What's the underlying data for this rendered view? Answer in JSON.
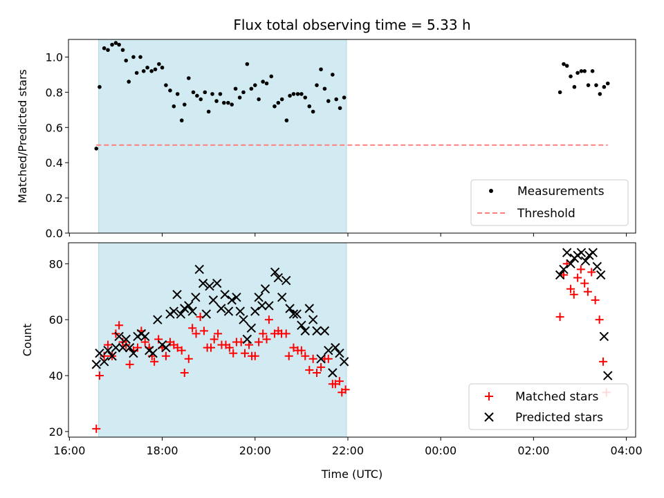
{
  "chart_data": [
    {
      "type": "scatter",
      "title": "Flux total observing time = 5.33 h",
      "xlabel": "",
      "ylabel": "Matched/Predicted stars",
      "ylim": [
        0.0,
        1.1
      ],
      "xlim_hours": [
        15.98,
        28.2
      ],
      "yticks": [
        0.0,
        0.2,
        0.4,
        0.6,
        0.8,
        1.0
      ],
      "ytick_labels": [
        "0.0",
        "0.2",
        "0.4",
        "0.6",
        "0.8",
        "1.0"
      ],
      "shaded_span": [
        16.63,
        21.97
      ],
      "shade_color": "#add8e6",
      "legend_position": "lower right",
      "series": [
        {
          "name": "Measurements",
          "marker": "dot",
          "color": "#000000",
          "points": [
            [
              16.58,
              0.48
            ],
            [
              16.65,
              0.83
            ],
            [
              16.75,
              1.05
            ],
            [
              16.83,
              1.04
            ],
            [
              16.92,
              1.07
            ],
            [
              17.0,
              1.08
            ],
            [
              17.07,
              1.07
            ],
            [
              17.15,
              1.04
            ],
            [
              17.22,
              0.98
            ],
            [
              17.28,
              0.86
            ],
            [
              17.38,
              1.0
            ],
            [
              17.45,
              0.91
            ],
            [
              17.53,
              1.0
            ],
            [
              17.6,
              0.92
            ],
            [
              17.68,
              0.94
            ],
            [
              17.77,
              0.92
            ],
            [
              17.85,
              0.93
            ],
            [
              17.93,
              0.96
            ],
            [
              18.0,
              0.94
            ],
            [
              18.08,
              0.84
            ],
            [
              18.17,
              0.81
            ],
            [
              18.25,
              0.72
            ],
            [
              18.33,
              0.79
            ],
            [
              18.42,
              0.64
            ],
            [
              18.48,
              0.73
            ],
            [
              18.57,
              0.88
            ],
            [
              18.67,
              0.8
            ],
            [
              18.75,
              0.78
            ],
            [
              18.83,
              0.76
            ],
            [
              18.92,
              0.8
            ],
            [
              19.0,
              0.69
            ],
            [
              19.08,
              0.79
            ],
            [
              19.17,
              0.75
            ],
            [
              19.25,
              0.79
            ],
            [
              19.33,
              0.74
            ],
            [
              19.42,
              0.74
            ],
            [
              19.5,
              0.73
            ],
            [
              19.58,
              0.82
            ],
            [
              19.67,
              0.77
            ],
            [
              19.75,
              0.8
            ],
            [
              19.83,
              0.96
            ],
            [
              19.92,
              0.82
            ],
            [
              20.0,
              0.84
            ],
            [
              20.08,
              0.76
            ],
            [
              20.17,
              0.86
            ],
            [
              20.25,
              0.85
            ],
            [
              20.35,
              0.89
            ],
            [
              20.42,
              0.72
            ],
            [
              20.5,
              0.74
            ],
            [
              20.58,
              0.76
            ],
            [
              20.68,
              0.64
            ],
            [
              20.75,
              0.78
            ],
            [
              20.83,
              0.79
            ],
            [
              20.92,
              0.79
            ],
            [
              21.0,
              0.79
            ],
            [
              21.08,
              0.77
            ],
            [
              21.17,
              0.72
            ],
            [
              21.25,
              0.69
            ],
            [
              21.33,
              0.84
            ],
            [
              21.42,
              0.93
            ],
            [
              21.5,
              0.82
            ],
            [
              21.58,
              0.75
            ],
            [
              21.67,
              0.9
            ],
            [
              21.75,
              0.76
            ],
            [
              21.83,
              0.71
            ],
            [
              21.92,
              0.77
            ],
            [
              26.57,
              0.8
            ],
            [
              26.65,
              0.96
            ],
            [
              26.72,
              0.95
            ],
            [
              26.8,
              0.89
            ],
            [
              26.88,
              0.83
            ],
            [
              26.95,
              0.91
            ],
            [
              27.03,
              0.92
            ],
            [
              27.1,
              0.92
            ],
            [
              27.18,
              0.84
            ],
            [
              27.27,
              0.92
            ],
            [
              27.35,
              0.84
            ],
            [
              27.43,
              0.79
            ],
            [
              27.52,
              0.83
            ],
            [
              27.6,
              0.85
            ]
          ]
        },
        {
          "name": "Threshold",
          "style": "dashed",
          "color": "#ff7f7f",
          "x_range": [
            16.58,
            27.6
          ],
          "value": 0.5
        }
      ]
    },
    {
      "type": "scatter",
      "xlabel": "Time (UTC)",
      "ylabel": "Count",
      "ylim": [
        18,
        87.5
      ],
      "xlim_hours": [
        15.98,
        28.2
      ],
      "yticks": [
        20,
        40,
        60,
        80
      ],
      "ytick_labels": [
        "20",
        "40",
        "60",
        "80"
      ],
      "xtick_hours": [
        16,
        18,
        20,
        22,
        24,
        26,
        28
      ],
      "xtick_labels": [
        "16:00",
        "18:00",
        "20:00",
        "22:00",
        "00:00",
        "02:00",
        "04:00"
      ],
      "shaded_span": [
        16.63,
        21.97
      ],
      "shade_color": "#add8e6",
      "legend_position": "lower right",
      "series": [
        {
          "name": "Matched stars",
          "marker": "plus",
          "color": "#ff0000",
          "points": [
            [
              16.58,
              21
            ],
            [
              16.65,
              40
            ],
            [
              16.75,
              47
            ],
            [
              16.83,
              51
            ],
            [
              16.92,
              47
            ],
            [
              17.0,
              55
            ],
            [
              17.07,
              58
            ],
            [
              17.15,
              52
            ],
            [
              17.22,
              51
            ],
            [
              17.3,
              44
            ],
            [
              17.38,
              49
            ],
            [
              17.47,
              50
            ],
            [
              17.55,
              56
            ],
            [
              17.63,
              52
            ],
            [
              17.72,
              50
            ],
            [
              17.78,
              47
            ],
            [
              17.83,
              45
            ],
            [
              17.92,
              53
            ],
            [
              18.0,
              50
            ],
            [
              18.08,
              47
            ],
            [
              18.17,
              52
            ],
            [
              18.25,
              51
            ],
            [
              18.33,
              50
            ],
            [
              18.42,
              49
            ],
            [
              18.48,
              41
            ],
            [
              18.57,
              46
            ],
            [
              18.65,
              57
            ],
            [
              18.73,
              55
            ],
            [
              18.82,
              61
            ],
            [
              18.9,
              56
            ],
            [
              18.97,
              50
            ],
            [
              19.05,
              50
            ],
            [
              19.12,
              53
            ],
            [
              19.2,
              55
            ],
            [
              19.28,
              51
            ],
            [
              19.37,
              51
            ],
            [
              19.45,
              50
            ],
            [
              19.53,
              48
            ],
            [
              19.6,
              52
            ],
            [
              19.7,
              52
            ],
            [
              19.78,
              48
            ],
            [
              19.87,
              51
            ],
            [
              19.93,
              47
            ],
            [
              20.0,
              47
            ],
            [
              20.08,
              52
            ],
            [
              20.17,
              55
            ],
            [
              20.25,
              53
            ],
            [
              20.3,
              60
            ],
            [
              20.42,
              55
            ],
            [
              20.5,
              56
            ],
            [
              20.57,
              55
            ],
            [
              20.67,
              55
            ],
            [
              20.73,
              47
            ],
            [
              20.83,
              50
            ],
            [
              20.92,
              49
            ],
            [
              21.0,
              49
            ],
            [
              21.08,
              47
            ],
            [
              21.17,
              42
            ],
            [
              21.25,
              46
            ],
            [
              21.33,
              41
            ],
            [
              21.42,
              43
            ],
            [
              21.5,
              46
            ],
            [
              21.58,
              46
            ],
            [
              21.67,
              37
            ],
            [
              21.73,
              37
            ],
            [
              21.82,
              38
            ],
            [
              21.87,
              34
            ],
            [
              21.95,
              35
            ],
            [
              26.57,
              61
            ],
            [
              26.65,
              76
            ],
            [
              26.72,
              80
            ],
            [
              26.8,
              71
            ],
            [
              26.87,
              69
            ],
            [
              26.95,
              75
            ],
            [
              27.02,
              78
            ],
            [
              27.1,
              73
            ],
            [
              27.17,
              70
            ],
            [
              27.25,
              77
            ],
            [
              27.33,
              67
            ],
            [
              27.42,
              60
            ],
            [
              27.5,
              45
            ],
            [
              27.57,
              34
            ]
          ]
        },
        {
          "name": "Predicted stars",
          "marker": "x",
          "color": "#000000",
          "points": [
            [
              16.58,
              44
            ],
            [
              16.65,
              48
            ],
            [
              16.75,
              45
            ],
            [
              16.83,
              49
            ],
            [
              16.92,
              47
            ],
            [
              17.0,
              50
            ],
            [
              17.07,
              54
            ],
            [
              17.15,
              50
            ],
            [
              17.22,
              53
            ],
            [
              17.3,
              50
            ],
            [
              17.38,
              48
            ],
            [
              17.47,
              54
            ],
            [
              17.55,
              55
            ],
            [
              17.63,
              54
            ],
            [
              17.72,
              49
            ],
            [
              17.8,
              48
            ],
            [
              17.9,
              60
            ],
            [
              18.0,
              51
            ],
            [
              18.08,
              50
            ],
            [
              18.17,
              62
            ],
            [
              18.25,
              63
            ],
            [
              18.32,
              69
            ],
            [
              18.4,
              62
            ],
            [
              18.48,
              64
            ],
            [
              18.57,
              65
            ],
            [
              18.65,
              63
            ],
            [
              18.72,
              68
            ],
            [
              18.8,
              78
            ],
            [
              18.88,
              73
            ],
            [
              18.95,
              62
            ],
            [
              19.02,
              72
            ],
            [
              19.1,
              67
            ],
            [
              19.18,
              73
            ],
            [
              19.27,
              64
            ],
            [
              19.35,
              69
            ],
            [
              19.43,
              63
            ],
            [
              19.5,
              67
            ],
            [
              19.6,
              68
            ],
            [
              19.68,
              63
            ],
            [
              19.75,
              60
            ],
            [
              19.83,
              53
            ],
            [
              19.92,
              57
            ],
            [
              20.0,
              63
            ],
            [
              20.08,
              68
            ],
            [
              20.15,
              65
            ],
            [
              20.22,
              71
            ],
            [
              20.3,
              65
            ],
            [
              20.43,
              77
            ],
            [
              20.5,
              75
            ],
            [
              20.58,
              68
            ],
            [
              20.67,
              74
            ],
            [
              20.75,
              64
            ],
            [
              20.83,
              62
            ],
            [
              20.9,
              62
            ],
            [
              21.0,
              58
            ],
            [
              21.08,
              56
            ],
            [
              21.17,
              64
            ],
            [
              21.25,
              60
            ],
            [
              21.33,
              56
            ],
            [
              21.42,
              46
            ],
            [
              21.5,
              56
            ],
            [
              21.58,
              49
            ],
            [
              21.67,
              41
            ],
            [
              21.73,
              50
            ],
            [
              21.82,
              48
            ],
            [
              21.92,
              45
            ],
            [
              26.57,
              76
            ],
            [
              26.65,
              78
            ],
            [
              26.72,
              84
            ],
            [
              26.8,
              80
            ],
            [
              26.88,
              82
            ],
            [
              26.95,
              83
            ],
            [
              27.03,
              84
            ],
            [
              27.12,
              81
            ],
            [
              27.2,
              83
            ],
            [
              27.28,
              84
            ],
            [
              27.37,
              79
            ],
            [
              27.45,
              76
            ],
            [
              27.52,
              54
            ],
            [
              27.6,
              40
            ]
          ]
        }
      ]
    }
  ]
}
